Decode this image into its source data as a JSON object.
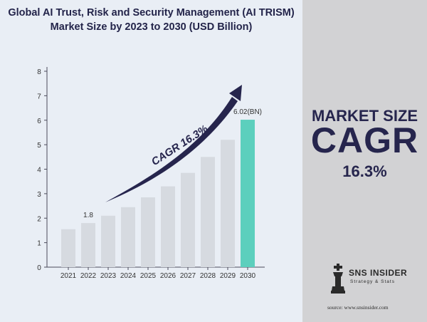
{
  "title_lines": [
    "Global AI Trust, Risk and Security Management (AI TRISM)",
    "Market Size by 2023 to 2030 (USD Billion)"
  ],
  "side_panel": {
    "label": "MARKET SIZE",
    "big_text": "CAGR",
    "value": "16.3%"
  },
  "logo": {
    "name": "SNS INSIDER",
    "tagline": "Strategy & Stats",
    "icon": "chess-king-icon"
  },
  "source": "source: www.snsinsider.com",
  "colors": {
    "bar": "#d6dae0",
    "highlight_bar": "#5ccfbd",
    "navy": "#26254d",
    "left_background": "#e9eef5",
    "right_background": "#d2d2d4"
  },
  "chart_data": {
    "type": "bar",
    "title": "Global AI Trust, Risk and Security Management (AI TRISM) Market Size by 2023 to 2030 (USD Billion)",
    "categories": [
      "2021",
      "2022",
      "2023",
      "2024",
      "2025",
      "2026",
      "2027",
      "2028",
      "2029",
      "2030"
    ],
    "values": [
      1.55,
      1.8,
      2.1,
      2.45,
      2.85,
      3.3,
      3.85,
      4.5,
      5.2,
      6.02
    ],
    "ylim": [
      0,
      8
    ],
    "yticks": [
      0,
      1,
      2,
      3,
      4,
      5,
      6,
      7,
      8
    ],
    "grid": false,
    "data_labels": [
      {
        "category": "2022",
        "text": "1.8"
      },
      {
        "category": "2030",
        "text": "6.02(BN)"
      }
    ],
    "highlight_category": "2030",
    "annotation": "CAGR 16.3%"
  }
}
